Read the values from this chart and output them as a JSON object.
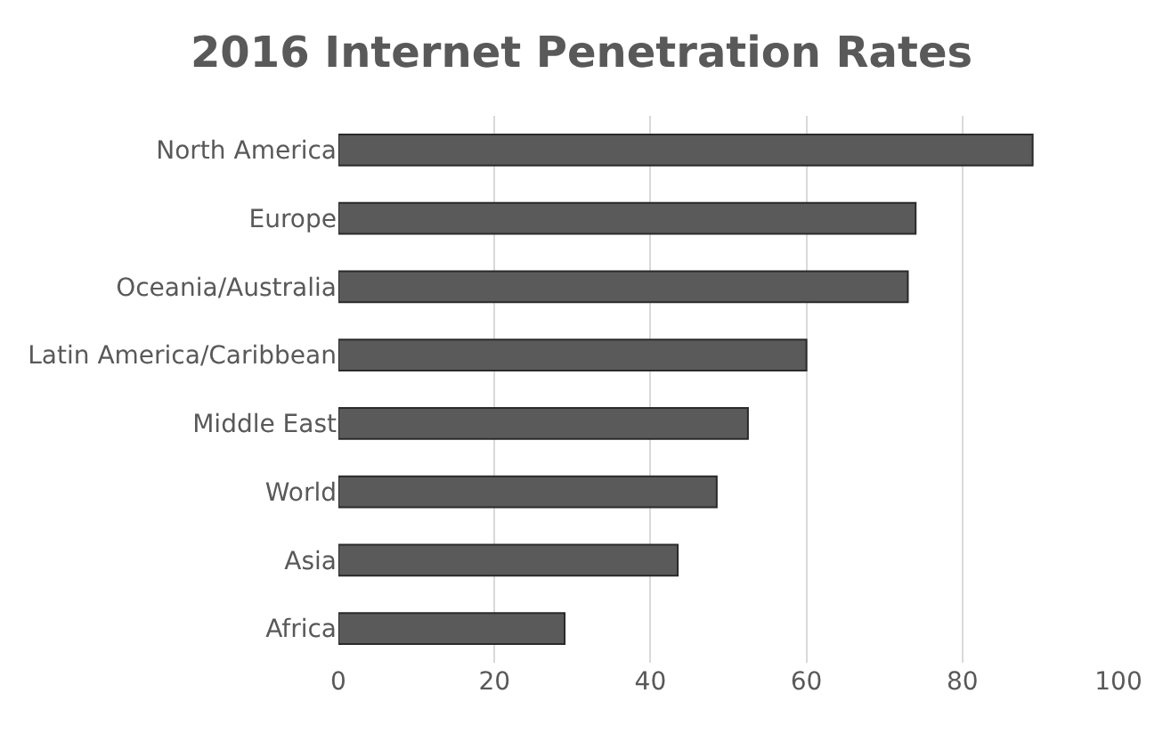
{
  "chart_data": {
    "type": "bar",
    "orientation": "horizontal",
    "title": "2016 Internet Penetration Rates",
    "categories": [
      "North America",
      "Europe",
      "Oceania/Australia",
      "Latin America/Caribbean",
      "Middle East",
      "World",
      "Asia",
      "Africa"
    ],
    "values": [
      89,
      74,
      73,
      60,
      52.5,
      48.5,
      43.5,
      29
    ],
    "color": "#5a5a5a",
    "xlim": [
      0,
      100
    ],
    "xticks": [
      0,
      20,
      40,
      60,
      80,
      100
    ],
    "grid": "x"
  }
}
